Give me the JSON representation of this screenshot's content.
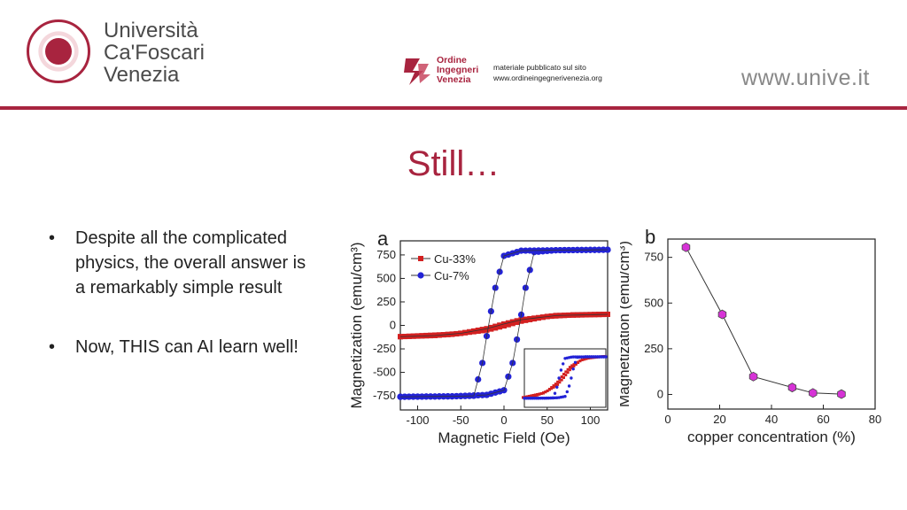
{
  "header": {
    "university": [
      "Università",
      "Ca'Foscari",
      "Venezia"
    ],
    "ordine": [
      "Ordine",
      "Ingegneri",
      "Venezia"
    ],
    "note": [
      "materiale pubblicato sul sito",
      "www.ordineingegnerivenezia.org"
    ],
    "website": "www.unive.it",
    "accent": "#a8243f"
  },
  "slide": {
    "title": "Still…",
    "bullet_glyph": "•",
    "bullets": [
      "Despite all the complicated physics, the overall answer is a remarkably simple result",
      "Now, THIS can AI learn well!"
    ]
  },
  "chart_data": [
    {
      "type": "line",
      "panel_label": "a",
      "xlabel": "Magnetic Field (Oe)",
      "ylabel": "Magnetization (emu/cm³)",
      "xlim": [
        -120,
        120
      ],
      "ylim": [
        -900,
        900
      ],
      "xticks": [
        -100,
        -50,
        0,
        50,
        100
      ],
      "yticks": [
        -750,
        -500,
        -250,
        0,
        250,
        500,
        750
      ],
      "legend": "top-left",
      "series": [
        {
          "name": "Cu-33%",
          "color": "#d32020",
          "marker": "square",
          "up_branch": [
            [
              -120,
              -120
            ],
            [
              -60,
              -95
            ],
            [
              -20,
              -50
            ],
            [
              0,
              -5
            ],
            [
              20,
              45
            ],
            [
              50,
              95
            ],
            [
              80,
              112
            ],
            [
              120,
              118
            ]
          ],
          "down_branch": [
            [
              120,
              118
            ],
            [
              60,
              105
            ],
            [
              20,
              60
            ],
            [
              0,
              15
            ],
            [
              -20,
              -35
            ],
            [
              -50,
              -85
            ],
            [
              -80,
              -108
            ],
            [
              -120,
              -120
            ]
          ]
        },
        {
          "name": "Cu-7%",
          "color": "#2323d6",
          "marker": "circle",
          "up_branch": [
            [
              -120,
              -760
            ],
            [
              -60,
              -755
            ],
            [
              -20,
              -740
            ],
            [
              0,
              -690
            ],
            [
              10,
              -400
            ],
            [
              18,
              0
            ],
            [
              25,
              400
            ],
            [
              35,
              780
            ],
            [
              60,
              800
            ],
            [
              120,
              805
            ]
          ],
          "down_branch": [
            [
              120,
              805
            ],
            [
              60,
              800
            ],
            [
              20,
              795
            ],
            [
              0,
              740
            ],
            [
              -10,
              400
            ],
            [
              -18,
              0
            ],
            [
              -25,
              -400
            ],
            [
              -35,
              -750
            ],
            [
              -60,
              -755
            ],
            [
              -120,
              -760
            ]
          ]
        }
      ]
    },
    {
      "type": "line",
      "panel_label": "b",
      "xlabel": "copper concentration (%)",
      "ylabel": "Magnetization (emu/cm³)",
      "xlim": [
        0,
        80
      ],
      "ylim": [
        -80,
        850
      ],
      "xticks": [
        0,
        20,
        40,
        60,
        80
      ],
      "yticks": [
        0,
        250,
        500,
        750
      ],
      "series": [
        {
          "name": "",
          "color": "#d633d6",
          "marker": "hexagon",
          "x": [
            7,
            21,
            33,
            48,
            56,
            67
          ],
          "y": [
            805,
            438,
            98,
            38,
            8,
            2
          ]
        }
      ]
    }
  ]
}
